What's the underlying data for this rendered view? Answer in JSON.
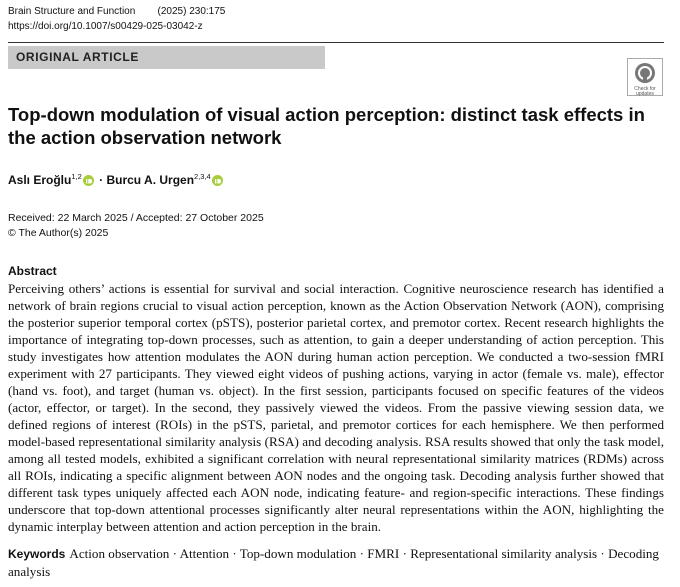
{
  "header": {
    "journal": "Brain Structure and Function",
    "citation": "(2025) 230:175",
    "doi": "https://doi.org/10.1007/s00429-025-03042-z"
  },
  "article_type": "ORIGINAL ARTICLE",
  "badge": "Check for updates",
  "title": "Top-down modulation of visual action perception: distinct task effects in the action observation network",
  "authors": [
    {
      "name": "Aslı Eroğlu",
      "affiliations": "1,2"
    },
    {
      "name": "Burcu A. Urgen",
      "affiliations": "2,3,4"
    }
  ],
  "author_separator": "·",
  "dates": "Received: 22 March 2025 / Accepted: 27 October 2025",
  "copyright": "© The Author(s) 2025",
  "abstract": {
    "heading": "Abstract",
    "text": "Perceiving others’ actions is essential for survival and social interaction. Cognitive neuroscience research has identified a network of brain regions crucial to visual action perception, known as the Action Observation Network (AON), comprising the posterior superior temporal cortex (pSTS), posterior parietal cortex, and premotor cortex. Recent research highlights the importance of integrating top-down processes, such as attention, to gain a deeper understanding of action perception. This study investigates how attention modulates the AON during human action perception. We conducted a two-session fMRI experiment with 27 participants. They viewed eight videos of pushing actions, varying in actor (female vs. male), effector (hand vs. foot), and target (human vs. object). In the first session, participants focused on specific features of the videos (actor, effector, or target). In the second, they passively viewed the videos. From the passive viewing session data, we defined regions of interest (ROIs) in the pSTS, parietal, and premotor cortices for each hemisphere. We then performed model-based representational similarity analysis (RSA) and decoding analysis. RSA results showed that only the task model, among all tested models, exhibited a significant correlation with neural representational similarity matrices (RDMs) across all ROIs, indicating a specific alignment between AON nodes and the ongoing task. Decoding analysis further showed that different task types uniquely affected each AON node, indicating feature- and region-specific interactions. These findings underscore that top-down attentional processes significantly alter neural representations within the AON, highlighting the dynamic interplay between attention and action perception in the brain."
  },
  "keywords": {
    "label": "Keywords",
    "separator": "·",
    "items": [
      "Action observation",
      "Attention",
      "Top-down modulation",
      "FMRI",
      "Representational similarity analysis",
      "Decoding analysis"
    ]
  }
}
